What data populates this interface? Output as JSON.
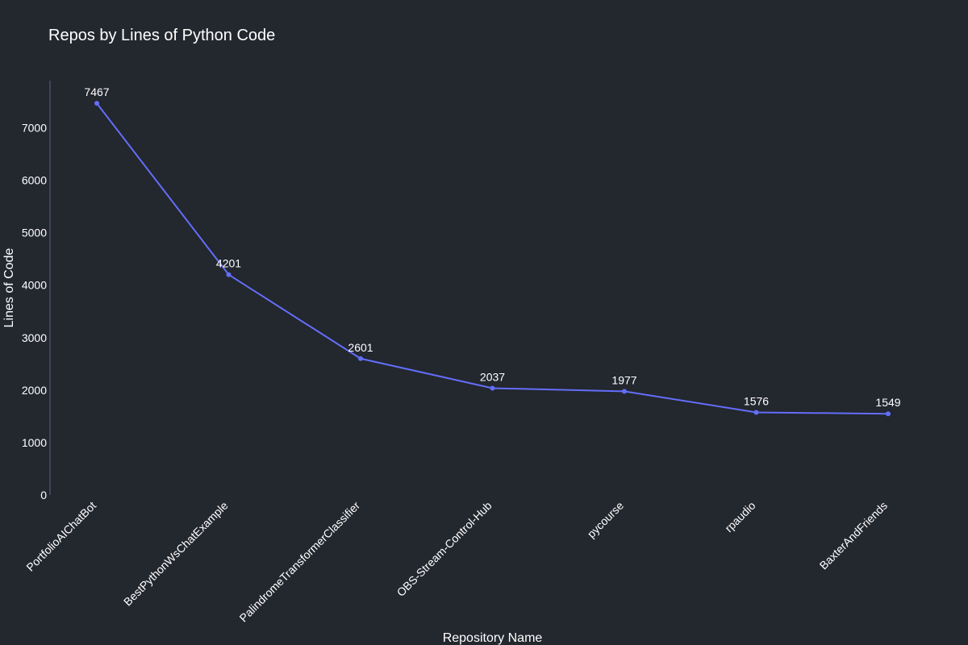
{
  "colors": {
    "background": "#23272e",
    "line": "#636efa",
    "axis": "#506784",
    "text": "#ffffff"
  },
  "chart_data": {
    "type": "line",
    "title": "Repos by Lines of Python Code",
    "xlabel": "Repository Name",
    "ylabel": "Lines of Code",
    "categories": [
      "PortfolioAIChatBot",
      "BestPythonWsChatExample",
      "PalindromeTransformerClassifier",
      "OBS-Stream-Control-Hub",
      "pycourse",
      "rpaudio",
      "BaxterAndFriends"
    ],
    "values": [
      7467,
      4201,
      2601,
      2037,
      1977,
      1576,
      1549
    ],
    "yticks": [
      0,
      1000,
      2000,
      3000,
      4000,
      5000,
      6000,
      7000
    ],
    "ylim": [
      0,
      7900
    ],
    "grid": false,
    "legend": "none",
    "data_labels": true
  }
}
